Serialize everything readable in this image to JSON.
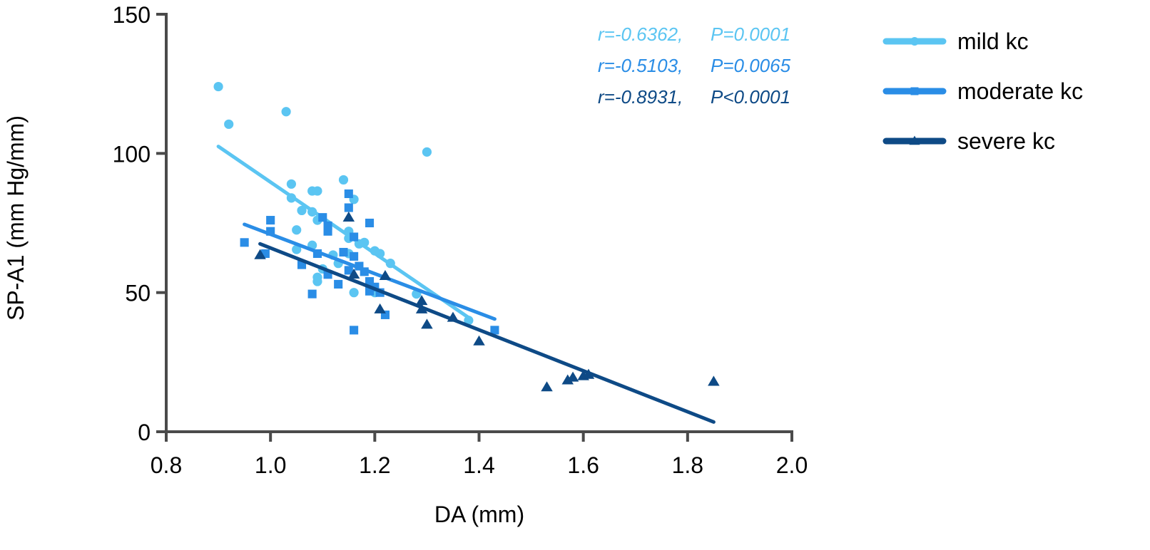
{
  "chart_data": {
    "type": "scatter",
    "title": "",
    "xlabel": "DA (mm)",
    "ylabel": "SP-A1 (mm Hg/mm)",
    "xlim": [
      0.8,
      2.0
    ],
    "ylim": [
      0,
      150
    ],
    "xticks": [
      "0.8",
      "1.0",
      "1.2",
      "1.4",
      "1.6",
      "1.8",
      "2.0"
    ],
    "yticks": [
      "0",
      "50",
      "100",
      "150"
    ],
    "legend_position": "right",
    "series": [
      {
        "name": "mild kc",
        "color": "#5BC5F2",
        "marker": "circle",
        "stat_r": "r=-0.6362,",
        "stat_p": "P=0.0001",
        "fit": [
          [
            0.9,
            102.5
          ],
          [
            1.38,
            41
          ]
        ],
        "points": [
          [
            0.9,
            124
          ],
          [
            0.92,
            110.5
          ],
          [
            1.03,
            115
          ],
          [
            1.04,
            89
          ],
          [
            1.04,
            84
          ],
          [
            1.05,
            72.5
          ],
          [
            1.05,
            65.5
          ],
          [
            1.06,
            79.5
          ],
          [
            1.08,
            86.5
          ],
          [
            1.09,
            86.5
          ],
          [
            1.08,
            79
          ],
          [
            1.09,
            76
          ],
          [
            1.08,
            67
          ],
          [
            1.09,
            54
          ],
          [
            1.09,
            55.5
          ],
          [
            1.1,
            58.5
          ],
          [
            1.12,
            63.5
          ],
          [
            1.13,
            60.5
          ],
          [
            1.14,
            90.5
          ],
          [
            1.15,
            72
          ],
          [
            1.15,
            69.5
          ],
          [
            1.15,
            64
          ],
          [
            1.16,
            83.5
          ],
          [
            1.16,
            50
          ],
          [
            1.17,
            67.5
          ],
          [
            1.18,
            68
          ],
          [
            1.2,
            65
          ],
          [
            1.2,
            50
          ],
          [
            1.21,
            64
          ],
          [
            1.23,
            60.5
          ],
          [
            1.28,
            49.5
          ],
          [
            1.3,
            100.5
          ],
          [
            1.38,
            40
          ]
        ]
      },
      {
        "name": "moderate kc",
        "color": "#2A8DE6",
        "marker": "square",
        "stat_r": "r=-0.5103,",
        "stat_p": "P=0.0065",
        "fit": [
          [
            0.95,
            74.5
          ],
          [
            1.43,
            40.5
          ]
        ],
        "points": [
          [
            0.95,
            68
          ],
          [
            0.99,
            64
          ],
          [
            1.0,
            76
          ],
          [
            1.0,
            72
          ],
          [
            1.06,
            60
          ],
          [
            1.08,
            49.5
          ],
          [
            1.09,
            64
          ],
          [
            1.1,
            77
          ],
          [
            1.11,
            74
          ],
          [
            1.11,
            72
          ],
          [
            1.11,
            56.5
          ],
          [
            1.13,
            53
          ],
          [
            1.14,
            64.5
          ],
          [
            1.15,
            85.5
          ],
          [
            1.15,
            80.5
          ],
          [
            1.15,
            58
          ],
          [
            1.16,
            70
          ],
          [
            1.16,
            63
          ],
          [
            1.16,
            36.5
          ],
          [
            1.17,
            59.5
          ],
          [
            1.18,
            57.5
          ],
          [
            1.19,
            75
          ],
          [
            1.19,
            54
          ],
          [
            1.19,
            50.5
          ],
          [
            1.2,
            52
          ],
          [
            1.21,
            50
          ],
          [
            1.22,
            42
          ],
          [
            1.43,
            36.5
          ]
        ]
      },
      {
        "name": "severe kc",
        "color": "#0E4A86",
        "marker": "triangle",
        "stat_r": "r=-0.8931,",
        "stat_p": "P<0.0001",
        "fit": [
          [
            0.98,
            67.5
          ],
          [
            1.85,
            3.5
          ]
        ],
        "points": [
          [
            0.98,
            63.5
          ],
          [
            1.15,
            77
          ],
          [
            1.16,
            56.5
          ],
          [
            1.21,
            44
          ],
          [
            1.22,
            56
          ],
          [
            1.29,
            47
          ],
          [
            1.29,
            44
          ],
          [
            1.3,
            38.5
          ],
          [
            1.35,
            41
          ],
          [
            1.4,
            32.5
          ],
          [
            1.53,
            16
          ],
          [
            1.57,
            18.5
          ],
          [
            1.58,
            19.5
          ],
          [
            1.6,
            20
          ],
          [
            1.61,
            20.5
          ],
          [
            1.85,
            18
          ]
        ]
      }
    ]
  }
}
